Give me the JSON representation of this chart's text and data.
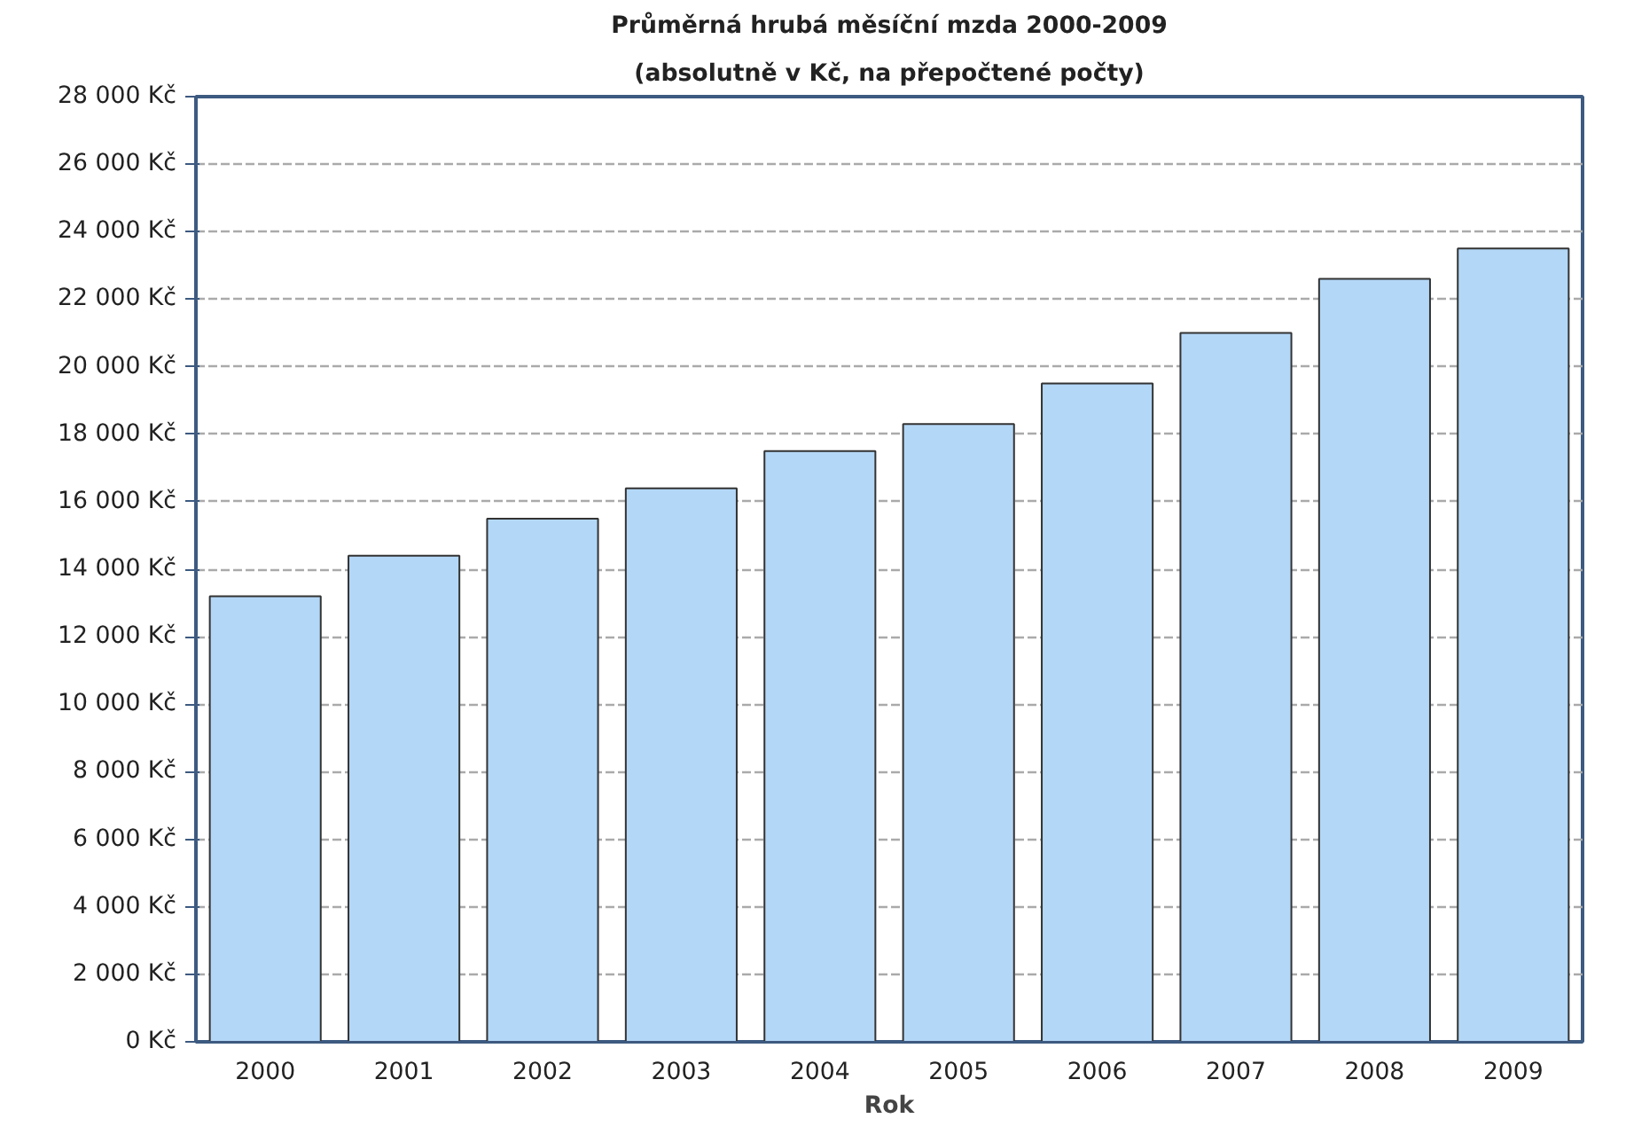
{
  "chart_data": {
    "type": "bar",
    "title": "Průměrná hrubá měsíční mzda 2000-2009",
    "subtitle": "(absolutně v Kč, na přepočtené počty)",
    "xlabel": "Rok",
    "categories": [
      "2000",
      "2001",
      "2002",
      "2003",
      "2004",
      "2005",
      "2006",
      "2007",
      "2008",
      "2009"
    ],
    "values": [
      13200,
      14400,
      15500,
      16400,
      17500,
      18300,
      19500,
      21000,
      22600,
      23500
    ],
    "color": "#b3d7f7",
    "ylim": [
      0,
      28000
    ],
    "yticks": [
      {
        "value": 0,
        "label": "0 Kč"
      },
      {
        "value": 2000,
        "label": "2 000 Kč"
      },
      {
        "value": 4000,
        "label": "4 000 Kč"
      },
      {
        "value": 6000,
        "label": "6 000 Kč"
      },
      {
        "value": 8000,
        "label": "8 000 Kč"
      },
      {
        "value": 10000,
        "label": "10 000 Kč"
      },
      {
        "value": 12000,
        "label": "12 000 Kč"
      },
      {
        "value": 14000,
        "label": "14 000 Kč"
      },
      {
        "value": 16000,
        "label": "16 000 Kč"
      },
      {
        "value": 18000,
        "label": "18 000 Kč"
      },
      {
        "value": 20000,
        "label": "20 000 Kč"
      },
      {
        "value": 22000,
        "label": "22 000 Kč"
      },
      {
        "value": 24000,
        "label": "24 000 Kč"
      },
      {
        "value": 26000,
        "label": "26 000 Kč"
      },
      {
        "value": 28000,
        "label": "28 000 Kč"
      }
    ],
    "grid": "y"
  }
}
